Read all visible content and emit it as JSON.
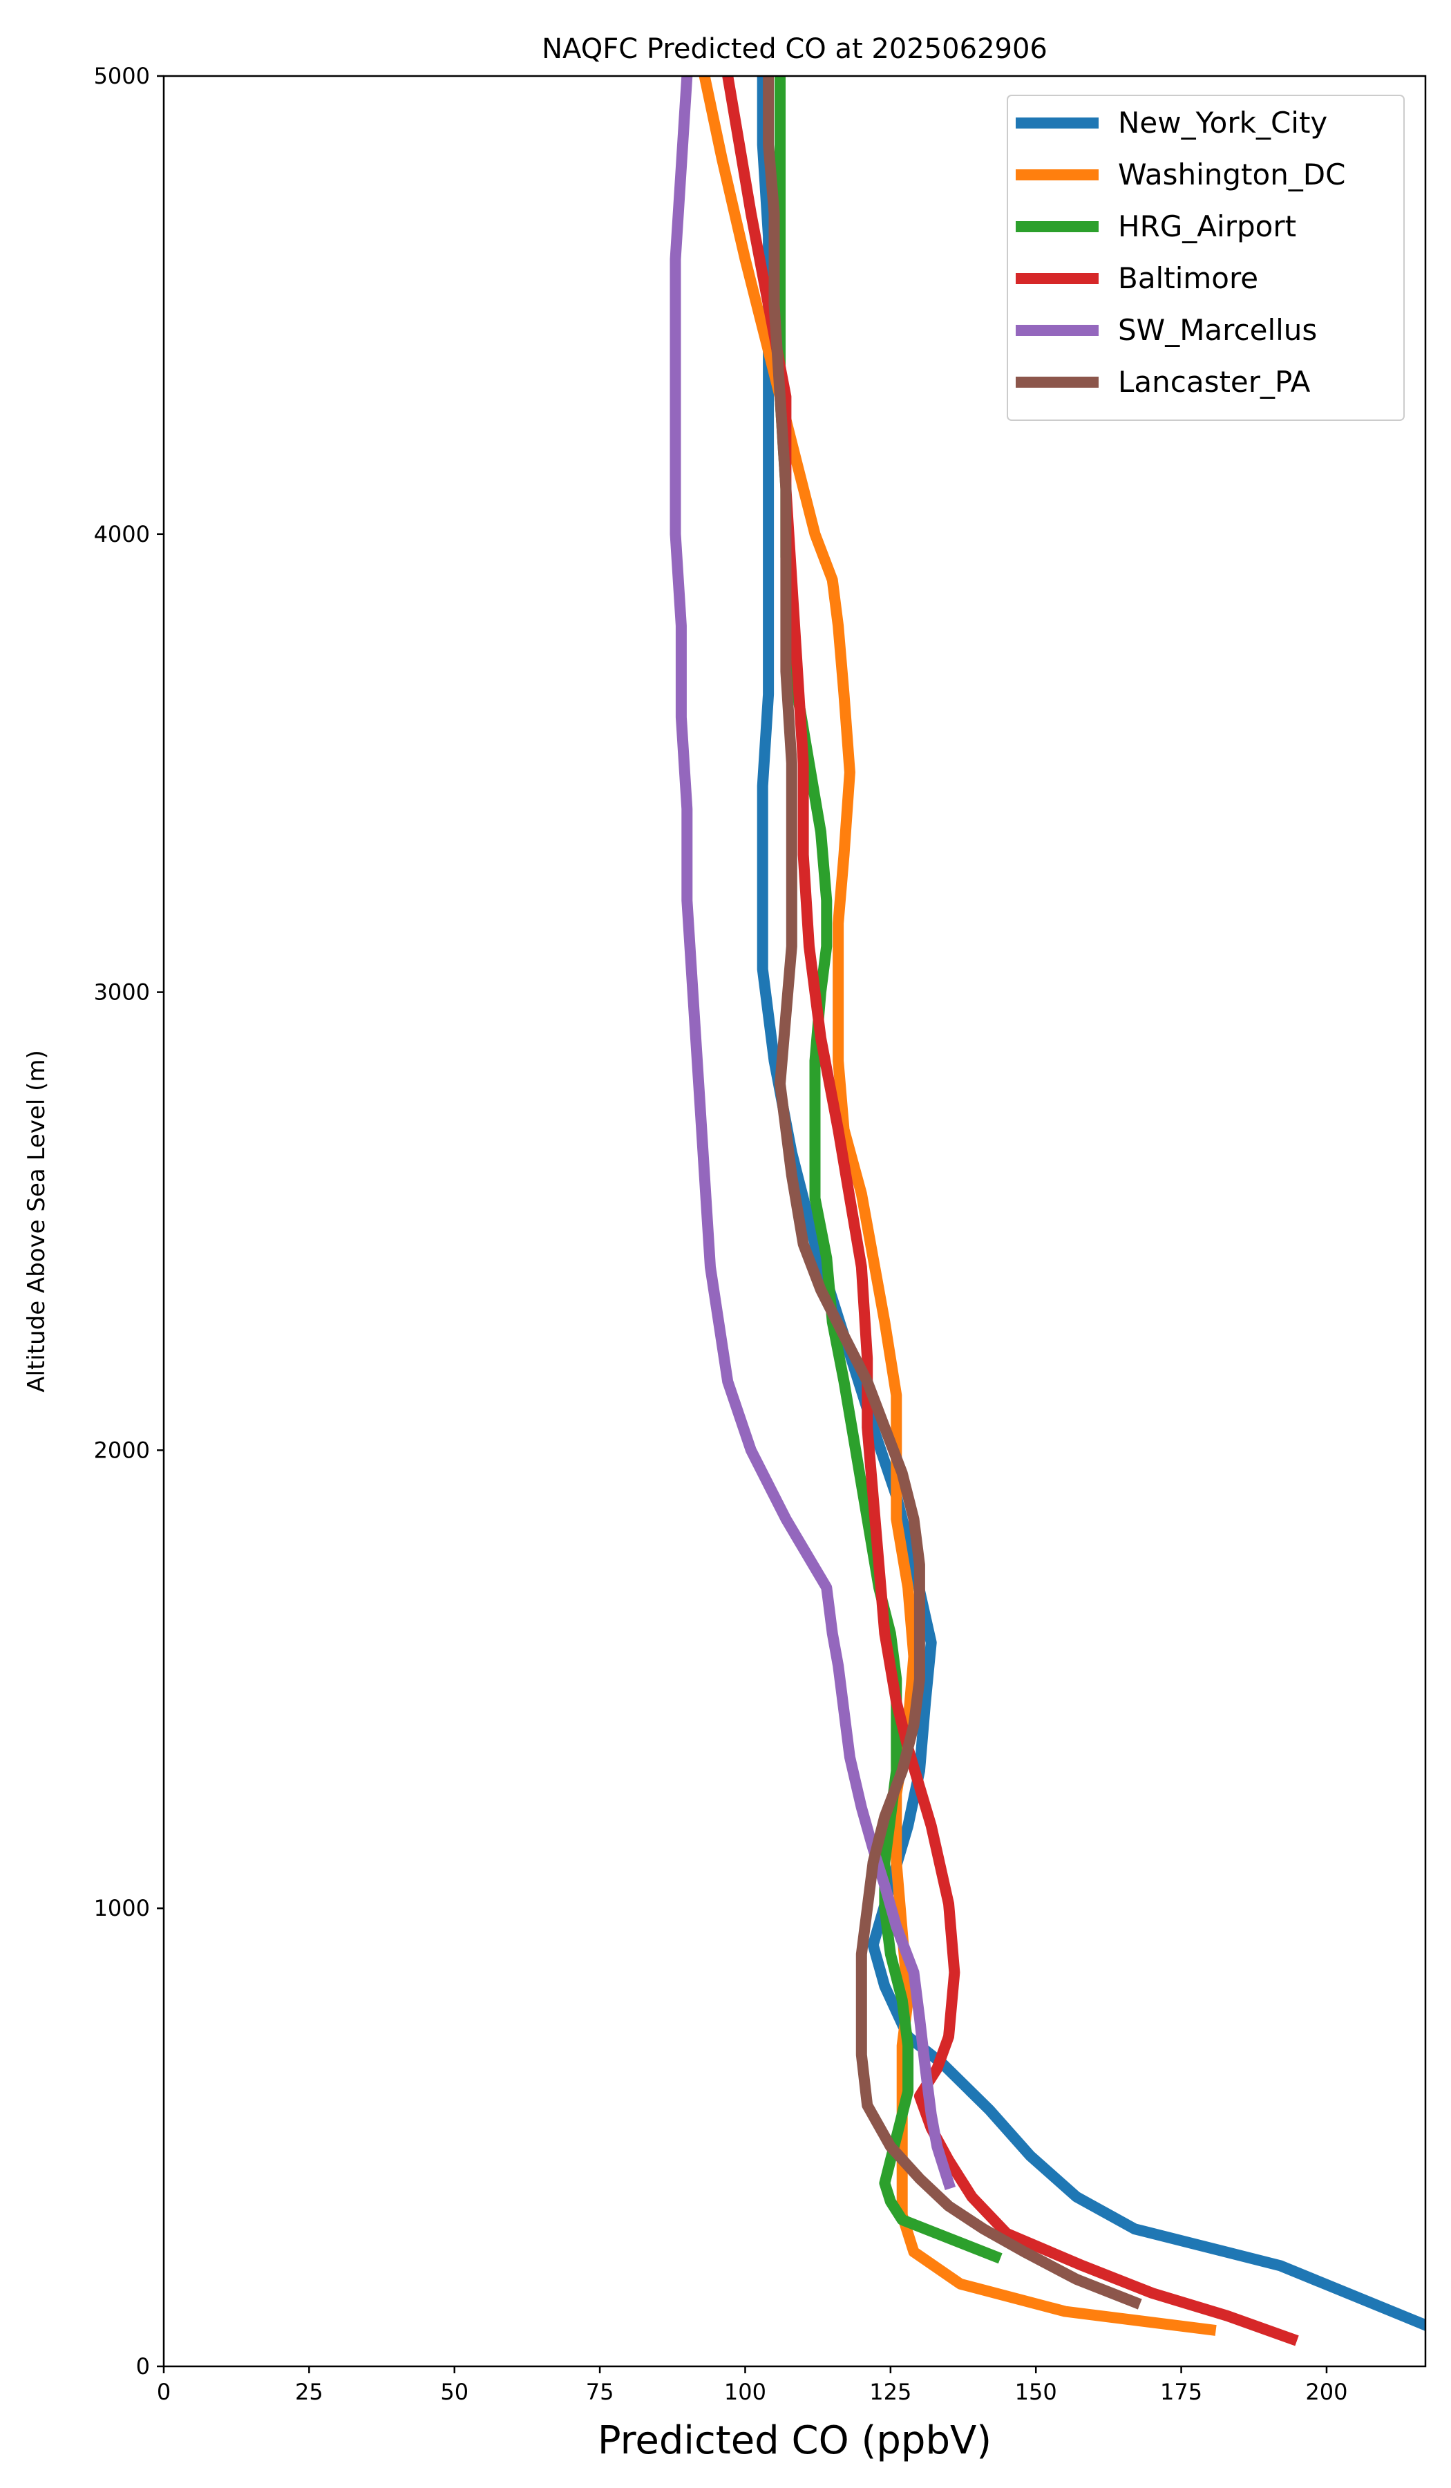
{
  "chart_data": {
    "type": "line",
    "title": "NAQFC Predicted CO at 2025062906",
    "xlabel": "Predicted CO (ppbV)",
    "ylabel": "Altitude Above Sea Level (m)",
    "xlim": [
      0,
      217
    ],
    "ylim": [
      0,
      5000
    ],
    "xticks": [
      0,
      25,
      50,
      75,
      100,
      125,
      150,
      175,
      200
    ],
    "yticks": [
      0,
      1000,
      2000,
      3000,
      4000,
      5000
    ],
    "grid": false,
    "legend_position": "top-right",
    "series": [
      {
        "name": "New_York_City",
        "color": "#1f77b4",
        "points": [
          [
            217,
            90
          ],
          [
            192,
            220
          ],
          [
            167,
            300
          ],
          [
            157,
            370
          ],
          [
            149,
            460
          ],
          [
            142,
            560
          ],
          [
            134,
            660
          ],
          [
            128,
            720
          ],
          [
            124,
            830
          ],
          [
            122,
            920
          ],
          [
            125,
            1050
          ],
          [
            128,
            1180
          ],
          [
            130,
            1300
          ],
          [
            131,
            1450
          ],
          [
            132,
            1580
          ],
          [
            129,
            1750
          ],
          [
            126,
            1900
          ],
          [
            122,
            2050
          ],
          [
            117,
            2250
          ],
          [
            112,
            2450
          ],
          [
            108,
            2650
          ],
          [
            105,
            2850
          ],
          [
            103,
            3050
          ],
          [
            103,
            3250
          ],
          [
            103,
            3450
          ],
          [
            104,
            3650
          ],
          [
            104,
            3850
          ],
          [
            104,
            4050
          ],
          [
            104,
            4250
          ],
          [
            104,
            4450
          ],
          [
            104,
            4650
          ],
          [
            103,
            4850
          ],
          [
            103,
            5000
          ]
        ]
      },
      {
        "name": "Washington_DC",
        "color": "#ff7f0e",
        "points": [
          [
            180,
            80
          ],
          [
            155,
            120
          ],
          [
            137,
            180
          ],
          [
            129,
            250
          ],
          [
            127,
            330
          ],
          [
            127,
            400
          ],
          [
            127,
            500
          ],
          [
            127,
            600
          ],
          [
            127,
            700
          ],
          [
            128,
            800
          ],
          [
            127,
            950
          ],
          [
            126,
            1100
          ],
          [
            126,
            1250
          ],
          [
            128,
            1400
          ],
          [
            129,
            1550
          ],
          [
            128,
            1700
          ],
          [
            126,
            1850
          ],
          [
            126,
            2000
          ],
          [
            126,
            2120
          ],
          [
            124,
            2280
          ],
          [
            122,
            2420
          ],
          [
            120,
            2560
          ],
          [
            117,
            2700
          ],
          [
            116,
            2850
          ],
          [
            116,
            3000
          ],
          [
            116,
            3150
          ],
          [
            117,
            3300
          ],
          [
            118,
            3480
          ],
          [
            117,
            3650
          ],
          [
            116,
            3800
          ],
          [
            115,
            3900
          ],
          [
            112,
            4000
          ],
          [
            109,
            4150
          ],
          [
            106,
            4300
          ],
          [
            103,
            4450
          ],
          [
            100,
            4600
          ],
          [
            96,
            4820
          ],
          [
            93,
            5000
          ]
        ]
      },
      {
        "name": "HRG_Airport",
        "color": "#2ca02c",
        "points": [
          [
            143,
            240
          ],
          [
            135,
            280
          ],
          [
            127,
            320
          ],
          [
            125,
            360
          ],
          [
            124,
            400
          ],
          [
            125,
            450
          ],
          [
            126,
            500
          ],
          [
            127,
            550
          ],
          [
            128,
            600
          ],
          [
            128,
            700
          ],
          [
            127,
            800
          ],
          [
            125,
            900
          ],
          [
            124,
            1000
          ],
          [
            124,
            1100
          ],
          [
            125,
            1200
          ],
          [
            126,
            1300
          ],
          [
            126,
            1400
          ],
          [
            126,
            1500
          ],
          [
            125,
            1600
          ],
          [
            123,
            1700
          ],
          [
            121,
            1850
          ],
          [
            119,
            2000
          ],
          [
            117,
            2150
          ],
          [
            115,
            2280
          ],
          [
            114,
            2420
          ],
          [
            112,
            2550
          ],
          [
            112,
            2700
          ],
          [
            112,
            2850
          ],
          [
            113,
            3000
          ],
          [
            114,
            3100
          ],
          [
            114,
            3200
          ],
          [
            113,
            3350
          ],
          [
            111,
            3500
          ],
          [
            109,
            3650
          ],
          [
            108,
            3800
          ],
          [
            107,
            3950
          ],
          [
            107,
            4100
          ],
          [
            106,
            4300
          ],
          [
            106,
            4500
          ],
          [
            106,
            4700
          ],
          [
            106,
            4900
          ],
          [
            106,
            5000
          ]
        ]
      },
      {
        "name": "Baltimore",
        "color": "#d62728",
        "points": [
          [
            194,
            60
          ],
          [
            183,
            110
          ],
          [
            170,
            160
          ],
          [
            158,
            220
          ],
          [
            145,
            290
          ],
          [
            139,
            370
          ],
          [
            135,
            450
          ],
          [
            132,
            520
          ],
          [
            130,
            590
          ],
          [
            133,
            650
          ],
          [
            135,
            720
          ],
          [
            136,
            860
          ],
          [
            135,
            1010
          ],
          [
            132,
            1180
          ],
          [
            128,
            1350
          ],
          [
            126,
            1450
          ],
          [
            124,
            1600
          ],
          [
            123,
            1750
          ],
          [
            122,
            1900
          ],
          [
            121,
            2050
          ],
          [
            121,
            2200
          ],
          [
            120,
            2400
          ],
          [
            118,
            2550
          ],
          [
            116,
            2700
          ],
          [
            113,
            2900
          ],
          [
            111,
            3100
          ],
          [
            110,
            3300
          ],
          [
            110,
            3500
          ],
          [
            109,
            3700
          ],
          [
            108,
            3900
          ],
          [
            107,
            4100
          ],
          [
            107,
            4300
          ],
          [
            104,
            4500
          ],
          [
            101,
            4700
          ],
          [
            99,
            4850
          ],
          [
            97,
            5000
          ]
        ]
      },
      {
        "name": "SW_Marcellus",
        "color": "#9467bd",
        "points": [
          [
            135,
            400
          ],
          [
            133,
            480
          ],
          [
            132,
            550
          ],
          [
            131,
            650
          ],
          [
            130,
            760
          ],
          [
            129,
            860
          ],
          [
            126,
            960
          ],
          [
            124,
            1050
          ],
          [
            122,
            1130
          ],
          [
            120,
            1220
          ],
          [
            118,
            1330
          ],
          [
            117,
            1430
          ],
          [
            116,
            1530
          ],
          [
            115,
            1600
          ],
          [
            114,
            1700
          ],
          [
            107,
            1850
          ],
          [
            101,
            2000
          ],
          [
            97,
            2150
          ],
          [
            94,
            2400
          ],
          [
            93,
            2600
          ],
          [
            92,
            2800
          ],
          [
            91,
            3000
          ],
          [
            90,
            3200
          ],
          [
            90,
            3400
          ],
          [
            89,
            3600
          ],
          [
            89,
            3800
          ],
          [
            88,
            4000
          ],
          [
            88,
            4150
          ],
          [
            88,
            4300
          ],
          [
            88,
            4450
          ],
          [
            88,
            4600
          ],
          [
            89,
            4800
          ],
          [
            90,
            5000
          ]
        ]
      },
      {
        "name": "Lancaster_PA",
        "color": "#8c564b",
        "points": [
          [
            167,
            140
          ],
          [
            157,
            190
          ],
          [
            148,
            250
          ],
          [
            141,
            300
          ],
          [
            135,
            350
          ],
          [
            130,
            410
          ],
          [
            125,
            480
          ],
          [
            121,
            570
          ],
          [
            120,
            680
          ],
          [
            120,
            800
          ],
          [
            120,
            900
          ],
          [
            121,
            1000
          ],
          [
            122,
            1100
          ],
          [
            124,
            1200
          ],
          [
            127,
            1300
          ],
          [
            129,
            1400
          ],
          [
            130,
            1500
          ],
          [
            130,
            1600
          ],
          [
            130,
            1750
          ],
          [
            129,
            1850
          ],
          [
            127,
            1950
          ],
          [
            124,
            2050
          ],
          [
            121,
            2150
          ],
          [
            117,
            2250
          ],
          [
            113,
            2350
          ],
          [
            110,
            2450
          ],
          [
            108,
            2600
          ],
          [
            107,
            2700
          ],
          [
            106,
            2800
          ],
          [
            107,
            2950
          ],
          [
            108,
            3100
          ],
          [
            108,
            3300
          ],
          [
            108,
            3500
          ],
          [
            107,
            3700
          ],
          [
            107,
            3900
          ],
          [
            107,
            4100
          ],
          [
            106,
            4300
          ],
          [
            105,
            4500
          ],
          [
            105,
            4700
          ],
          [
            104,
            4850
          ],
          [
            104,
            5000
          ]
        ]
      }
    ]
  }
}
